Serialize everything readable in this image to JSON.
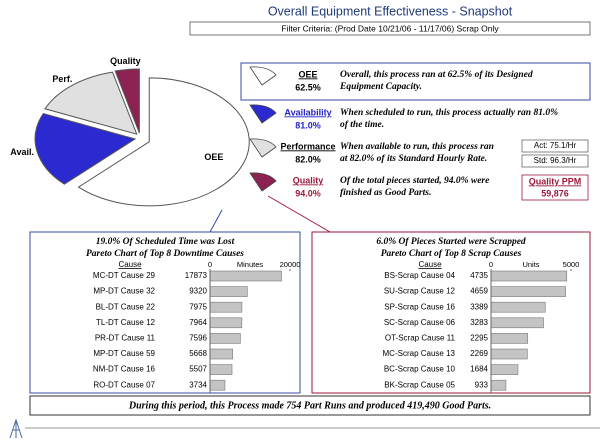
{
  "header": {
    "title": "Overall Equipment Effectiveness - Snapshot",
    "filter": "Filter Criteria: (Prod Date 10/21/06 - 11/17/06) Scrap Only"
  },
  "metrics": [
    {
      "name": "OEE",
      "value": "62.5%",
      "color": "#000000",
      "icon": "#ffffff",
      "lines": [
        "Overall, this process ran at 62.5% of its Designed",
        "Equipment Capacity."
      ]
    },
    {
      "name": "Availability",
      "value": "81.0%",
      "color": "#2424c8",
      "icon": "#2a2ad0",
      "lines": [
        "When scheduled to run, this process actually ran 81.0%",
        "of the time."
      ]
    },
    {
      "name": "Performance",
      "value": "82.0%",
      "color": "#000000",
      "icon": "#e0e0e0",
      "lines": [
        "When available to run, this process ran",
        "at 82.0% of its Standard Hourly Rate."
      ]
    },
    {
      "name": "Quality",
      "value": "94.0%",
      "color": "#9b1a3a",
      "icon": "#8b2252",
      "lines": [
        "Of the total pieces started, 94.0% were",
        "finished as Good Parts."
      ]
    }
  ],
  "rate": {
    "actual": "Act: 75.1/Hr",
    "standard": "Std: 96.3/Hr"
  },
  "quality_ppm": {
    "label": "Quality PPM",
    "value": "59,876"
  },
  "footer": "During this period, this Process made 754 Part Runs and produced 419,490 Good Parts.",
  "chart_data": [
    {
      "type": "pie",
      "categories": [
        "Quality",
        "Perf.",
        "Avail.",
        "OEE"
      ],
      "values": [
        3.9,
        14.6,
        19.0,
        62.5
      ],
      "colors": [
        "#8b2252",
        "#e0e0e0",
        "#2a2ad0",
        "#ffffff"
      ]
    },
    {
      "type": "bar",
      "horizontal": true,
      "title": "19.0% Of Scheduled Time was Lost",
      "subtitle": "Pareto Chart of Top 8 Downtime Causes",
      "ylabel": "Cause",
      "xlabel": "Minutes",
      "xlim": [
        0,
        20000
      ],
      "xticks": [
        0,
        20000
      ],
      "color": "#c4c4c4",
      "border": "#3a4aa0",
      "categories": [
        "MC-DT Cause 29",
        "MP-DT Cause 32",
        "BL-DT Cause 22",
        "TL-DT Cause 12",
        "PR-DT Cause 11",
        "MP-DT Cause 59",
        "NM-DT Cause 16",
        "RO-DT Cause 07"
      ],
      "values": [
        17873,
        9320,
        7975,
        7964,
        7596,
        5668,
        5507,
        3734
      ]
    },
    {
      "type": "bar",
      "horizontal": true,
      "title": "6.0% Of Pieces Started were Scrapped",
      "subtitle": "Pareto Chart of Top 8 Scrap Causes",
      "ylabel": "Cause",
      "xlabel": "Units",
      "xlim": [
        0,
        5000
      ],
      "xticks": [
        0,
        5000
      ],
      "color": "#c4c4c4",
      "border": "#9b1a3a",
      "categories": [
        "BS-Scrap Cause 04",
        "SU-Scrap Cause 12",
        "SP-Scrap Cause 16",
        "SC-Scrap Cause 06",
        "OT-Scrap Cause 11",
        "MC-Scrap Cause 13",
        "BC-Scrap Cause 10",
        "BK-Scrap Cause 05"
      ],
      "values": [
        4735,
        4659,
        3389,
        3283,
        2295,
        2269,
        1684,
        933
      ]
    }
  ]
}
